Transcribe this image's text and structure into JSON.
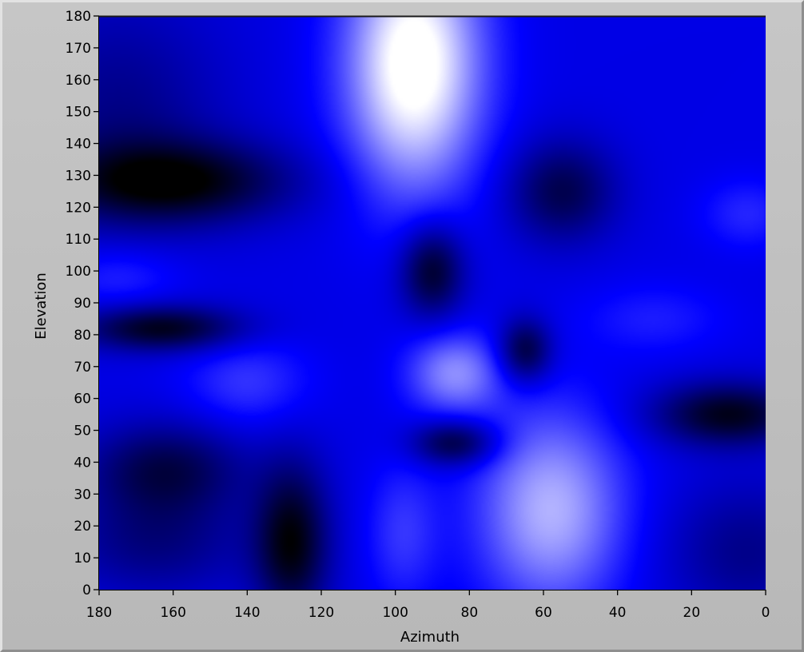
{
  "chart_data": {
    "type": "heatmap",
    "xlabel": "Azimuth",
    "ylabel": "Elevation",
    "xlim": [
      180,
      0
    ],
    "ylim": [
      0,
      180
    ],
    "x_ticks": [
      180,
      160,
      140,
      120,
      100,
      80,
      60,
      40,
      20,
      0
    ],
    "y_ticks": [
      0,
      10,
      20,
      30,
      40,
      50,
      60,
      70,
      80,
      90,
      100,
      110,
      120,
      130,
      140,
      150,
      160,
      170,
      180
    ],
    "colormap": [
      {
        "stop": 0.0,
        "color": "#000000"
      },
      {
        "stop": 0.5,
        "color": "#0000ff"
      },
      {
        "stop": 1.0,
        "color": "#ffffff"
      }
    ],
    "background_level": 0.45,
    "features": [
      {
        "az": 95,
        "el": 165,
        "s_az": 13,
        "s_el": 28,
        "amp": 0.62
      },
      {
        "az": 58,
        "el": 25,
        "s_az": 14,
        "s_el": 22,
        "amp": 0.4
      },
      {
        "az": 84,
        "el": 68,
        "s_az": 9,
        "s_el": 9,
        "amp": 0.32
      },
      {
        "az": 98,
        "el": 18,
        "s_az": 7,
        "s_el": 16,
        "amp": 0.15
      },
      {
        "az": 140,
        "el": 65,
        "s_az": 12,
        "s_el": 10,
        "amp": 0.15
      },
      {
        "az": 175,
        "el": 98,
        "s_az": 12,
        "s_el": 7,
        "amp": 0.12
      },
      {
        "az": 5,
        "el": 118,
        "s_az": 9,
        "s_el": 8,
        "amp": 0.12
      },
      {
        "az": 30,
        "el": 85,
        "s_az": 14,
        "s_el": 8,
        "amp": 0.1
      },
      {
        "az": 160,
        "el": 128,
        "s_az": 22,
        "s_el": 9,
        "amp": -0.42
      },
      {
        "az": 163,
        "el": 82,
        "s_az": 15,
        "s_el": 5,
        "amp": -0.4
      },
      {
        "az": 128,
        "el": 15,
        "s_az": 7,
        "s_el": 17,
        "amp": -0.42
      },
      {
        "az": 10,
        "el": 55,
        "s_az": 14,
        "s_el": 7,
        "amp": -0.4
      },
      {
        "az": 90,
        "el": 100,
        "s_az": 6,
        "s_el": 10,
        "amp": -0.38
      },
      {
        "az": 55,
        "el": 125,
        "s_az": 10,
        "s_el": 11,
        "amp": -0.3
      },
      {
        "az": 84,
        "el": 46,
        "s_az": 8,
        "s_el": 5,
        "amp": -0.35
      },
      {
        "az": 65,
        "el": 75,
        "s_az": 5,
        "s_el": 7,
        "amp": -0.35
      },
      {
        "az": 162,
        "el": 38,
        "s_az": 15,
        "s_el": 10,
        "amp": -0.3
      },
      {
        "az": 165,
        "el": 15,
        "s_az": 18,
        "s_el": 12,
        "amp": -0.2
      },
      {
        "az": 175,
        "el": 150,
        "s_az": 20,
        "s_el": 25,
        "amp": -0.18
      },
      {
        "az": 5,
        "el": 12,
        "s_az": 15,
        "s_el": 15,
        "amp": -0.18
      }
    ]
  }
}
